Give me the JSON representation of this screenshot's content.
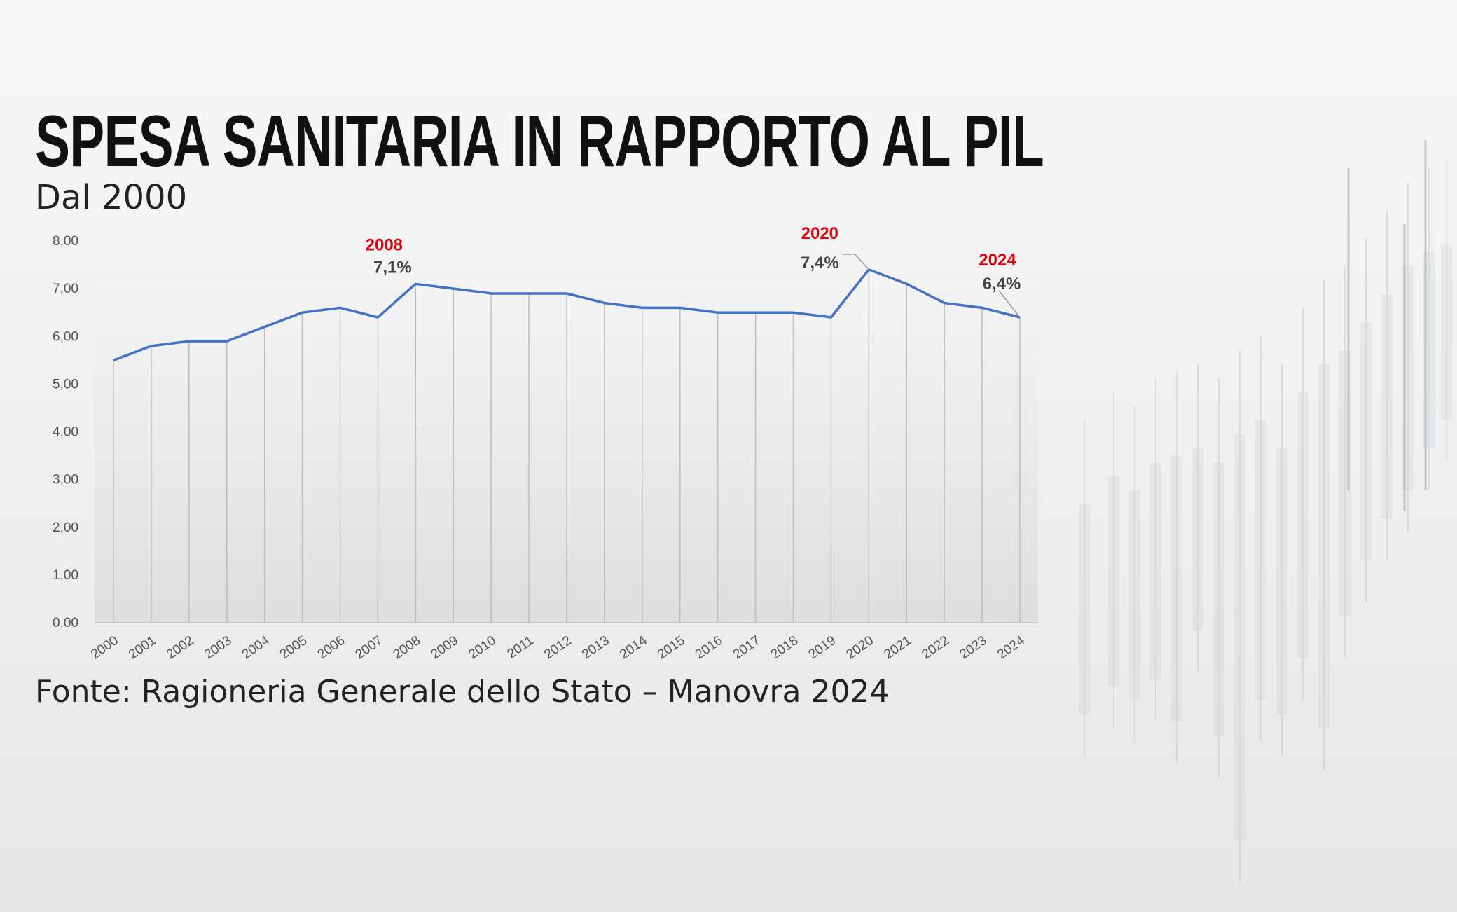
{
  "header": {
    "title": "SPESA SANITARIA IN RAPPORTO AL PIL",
    "subtitle": "Dal 2000"
  },
  "source": "Fonte: Ragioneria Generale dello Stato – Manovra 2024",
  "chart_data": {
    "type": "line",
    "title": "SPESA SANITARIA IN RAPPORTO AL PIL",
    "subtitle": "Dal 2000",
    "x": [
      "2000",
      "2001",
      "2002",
      "2003",
      "2004",
      "2005",
      "2006",
      "2007",
      "2008",
      "2009",
      "2010",
      "2011",
      "2012",
      "2013",
      "2014",
      "2015",
      "2016",
      "2017",
      "2018",
      "2019",
      "2020",
      "2021",
      "2022",
      "2023",
      "2024"
    ],
    "values": [
      5.5,
      5.8,
      5.9,
      5.9,
      6.2,
      6.5,
      6.6,
      6.4,
      7.1,
      7.0,
      6.9,
      6.9,
      6.9,
      6.7,
      6.6,
      6.6,
      6.5,
      6.5,
      6.5,
      6.4,
      7.4,
      7.1,
      6.7,
      6.6,
      6.4
    ],
    "ylim": [
      0,
      8
    ],
    "yticks": [
      "0,00",
      "1,00",
      "2,00",
      "3,00",
      "4,00",
      "5,00",
      "6,00",
      "7,00",
      "8,00"
    ],
    "grid": "vertical lines at each year",
    "line_color": "#4472c4",
    "annotations": [
      {
        "year": "2008",
        "label": "2008",
        "value_label": "7,1%"
      },
      {
        "year": "2020",
        "label": "2020",
        "value_label": "7,4%"
      },
      {
        "year": "2024",
        "label": "2024",
        "value_label": "6,4%"
      }
    ],
    "annotation_year_color": "#e3000f",
    "annotation_value_color": "#444444"
  }
}
